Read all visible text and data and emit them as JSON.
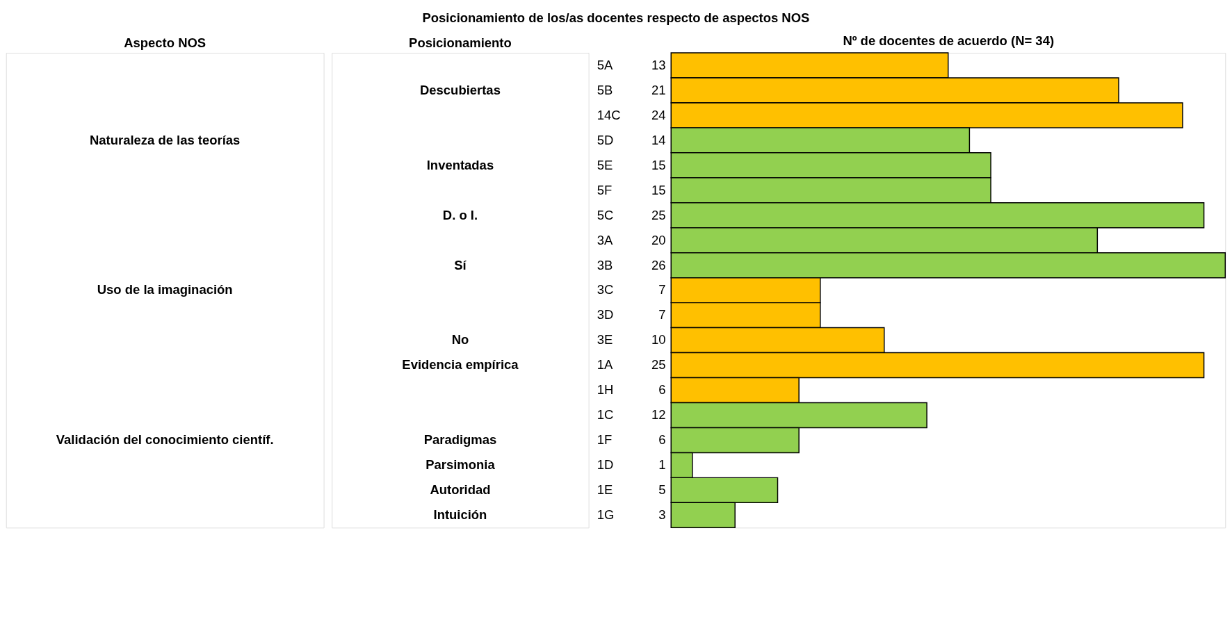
{
  "chart_data": [
    {
      "type": "other",
      "title": "Aspecto NOS",
      "annotations": [
        {
          "text": "Naturaleza de las teorías",
          "y": "5D"
        },
        {
          "text": "Uso de la imaginación",
          "y": "3C"
        },
        {
          "text": "Validación del conocimiento científ.",
          "y": "1F"
        }
      ]
    },
    {
      "type": "other",
      "title": "Posicionamiento",
      "annotations": [
        {
          "text": "Descubiertas",
          "y": "5B"
        },
        {
          "text": "Inventadas",
          "y": "5E"
        },
        {
          "text": "D. o I.",
          "y": "5C"
        },
        {
          "text": "Sí",
          "y": "3B"
        },
        {
          "text": "No",
          "y": "3E"
        },
        {
          "text": "Evidencia empírica",
          "y": "1A"
        },
        {
          "text": "Paradigmas",
          "y": "1F"
        },
        {
          "text": "Parsimonia",
          "y": "1D"
        },
        {
          "text": "Autoridad",
          "y": "1E"
        },
        {
          "text": "Intuición",
          "y": "1G"
        }
      ]
    },
    {
      "type": "bar",
      "orientation": "horizontal",
      "title": "Posicionamiento de los/as docentes respecto de aspectos NOS",
      "xlabel": "Nº de docentes de acuerdo (N= 34)",
      "tick_labels": "y",
      "data_labels": true,
      "categories": [
        "5A",
        "5B",
        "14C",
        "5D",
        "5E",
        "5F",
        "5C",
        "3A",
        "3B",
        "3C",
        "3D",
        "3E",
        "1A",
        "1H",
        "1C",
        "1F",
        "1D",
        "1E",
        "1G"
      ],
      "values": [
        13,
        21,
        24,
        14,
        15,
        15,
        25,
        20,
        26,
        7,
        7,
        10,
        25,
        6,
        12,
        6,
        1,
        5,
        3
      ],
      "colors": [
        "#ffc000",
        "#ffc000",
        "#ffc000",
        "#92d050",
        "#92d050",
        "#92d050",
        "#92d050",
        "#92d050",
        "#92d050",
        "#ffc000",
        "#ffc000",
        "#ffc000",
        "#ffc000",
        "#ffc000",
        "#92d050",
        "#92d050",
        "#92d050",
        "#92d050",
        "#92d050"
      ]
    }
  ]
}
